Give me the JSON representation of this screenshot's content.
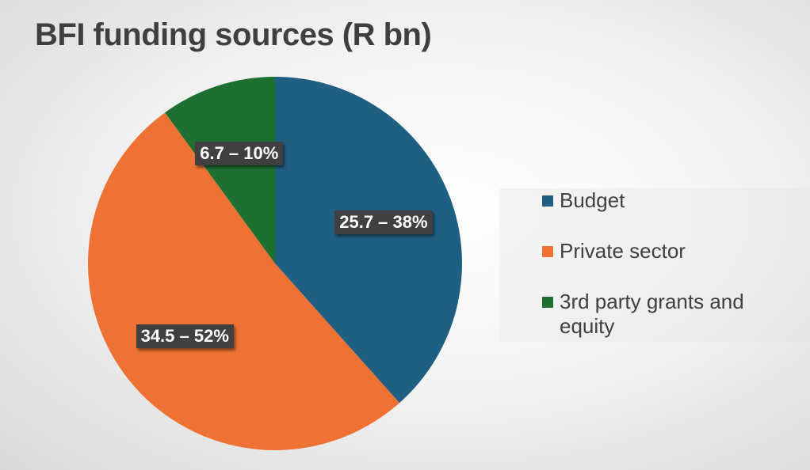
{
  "title": "BFI funding sources (R bn)",
  "chart_data": {
    "type": "pie",
    "title": "BFI funding sources (R bn)",
    "slices": [
      {
        "name": "Budget",
        "value": 25.7,
        "percent": 38,
        "label": "25.7 – 38%",
        "color": "#1f5f82"
      },
      {
        "name": "Private sector",
        "value": 34.5,
        "percent": 52,
        "label": "34.5 – 52%",
        "color": "#ed7234"
      },
      {
        "name": "3rd party grants and equity",
        "value": 6.7,
        "percent": 10,
        "label": "6.7 – 10%",
        "color": "#1e7031"
      }
    ],
    "legend_position": "right"
  }
}
